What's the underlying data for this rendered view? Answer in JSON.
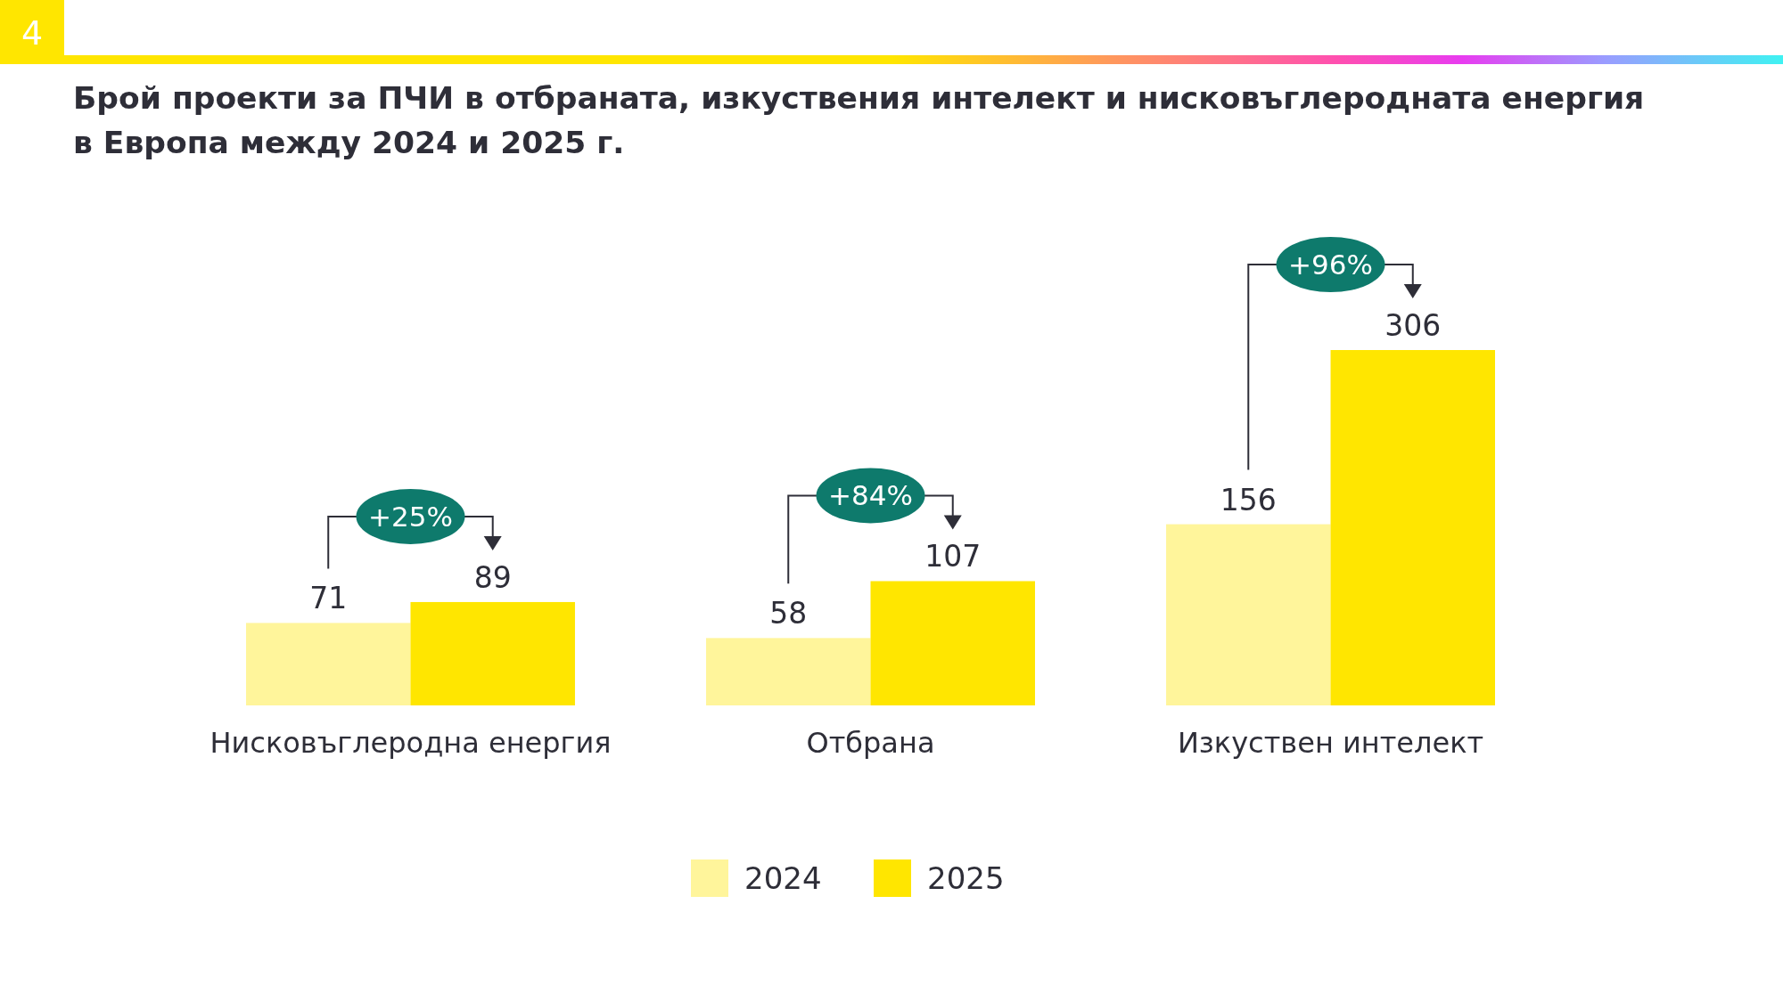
{
  "chart_data": {
    "type": "bar",
    "title": "Брой проекти за ПЧИ в отбраната, изкуствения интелект и нисковъглеродната енергия\nв Европа между 2024 и 2025 г.",
    "categories": [
      "Нисковъглеродна енергия",
      "Отбрана",
      "Изкуствен интелект"
    ],
    "series": [
      {
        "name": "2024",
        "color": "#fff59b",
        "values": [
          71,
          58,
          156
        ]
      },
      {
        "name": "2025",
        "color": "#ffe600",
        "values": [
          89,
          107,
          306
        ]
      }
    ],
    "data_labels": true,
    "legend": "bottom",
    "annotations": [
      {
        "text": "+25%",
        "x": "Нисковъглеродна енергия",
        "y": 89
      },
      {
        "text": "+84%",
        "x": "Отбрана",
        "y": 107
      },
      {
        "text": "+96%",
        "x": "Изкуствен интелект",
        "y": 306
      },
      "4"
    ]
  }
}
